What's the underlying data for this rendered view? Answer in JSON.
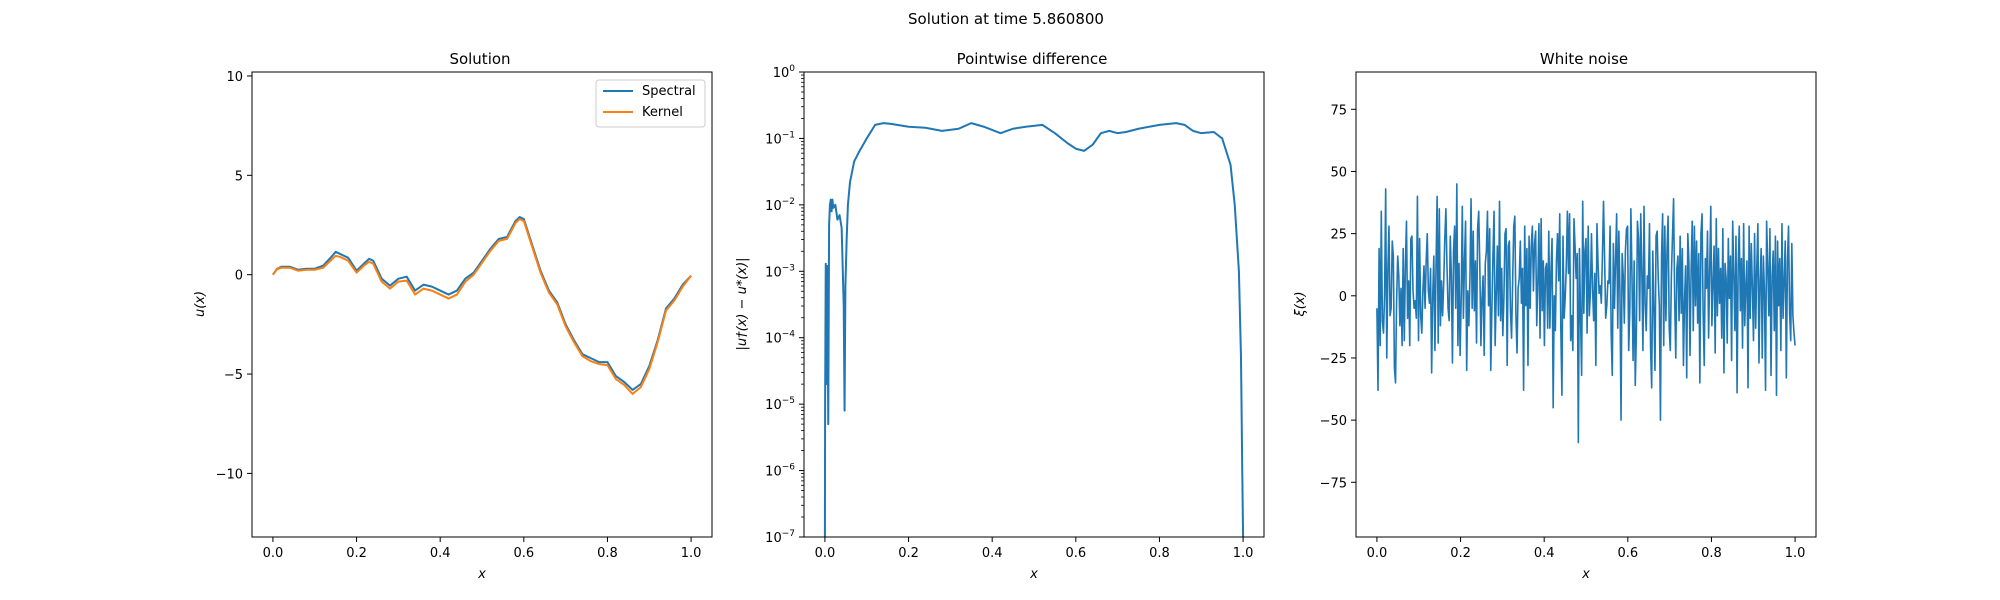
{
  "figure": {
    "suptitle": "Solution at time 5.860800"
  },
  "chart_data": [
    {
      "type": "line",
      "title": "Solution",
      "xlabel": "x",
      "ylabel": "u(x)",
      "xlim": [
        -0.05,
        1.05
      ],
      "ylim": [
        -13.2,
        10.2
      ],
      "xticks": [
        0.0,
        0.2,
        0.4,
        0.6,
        0.8,
        1.0
      ],
      "xtick_labels": [
        "0.0",
        "0.2",
        "0.4",
        "0.6",
        "0.8",
        "1.0"
      ],
      "yticks": [
        -10,
        -5,
        0,
        5,
        10
      ],
      "ytick_labels": [
        "−10",
        "−5",
        "0",
        "5",
        "10"
      ],
      "legend": {
        "placement": "upper-right",
        "entries": [
          "Spectral",
          "Kernel"
        ]
      },
      "series": [
        {
          "name": "Spectral",
          "color": "#1f77b4",
          "x": [
            0.0,
            0.01,
            0.02,
            0.04,
            0.06,
            0.08,
            0.1,
            0.12,
            0.14,
            0.15,
            0.16,
            0.18,
            0.2,
            0.22,
            0.23,
            0.24,
            0.26,
            0.28,
            0.3,
            0.32,
            0.34,
            0.36,
            0.38,
            0.4,
            0.42,
            0.44,
            0.46,
            0.48,
            0.5,
            0.52,
            0.54,
            0.56,
            0.58,
            0.59,
            0.6,
            0.62,
            0.64,
            0.66,
            0.68,
            0.7,
            0.72,
            0.74,
            0.76,
            0.78,
            0.8,
            0.82,
            0.84,
            0.86,
            0.88,
            0.9,
            0.92,
            0.94,
            0.96,
            0.98,
            1.0
          ],
          "y": [
            0.0,
            0.3,
            0.4,
            0.4,
            0.25,
            0.3,
            0.3,
            0.45,
            0.9,
            1.15,
            1.05,
            0.85,
            0.2,
            0.6,
            0.8,
            0.7,
            -0.2,
            -0.55,
            -0.2,
            -0.1,
            -0.8,
            -0.5,
            -0.6,
            -0.8,
            -1.0,
            -0.8,
            -0.2,
            0.1,
            0.7,
            1.3,
            1.8,
            1.9,
            2.7,
            2.9,
            2.8,
            1.5,
            0.2,
            -0.8,
            -1.4,
            -2.5,
            -3.3,
            -4.0,
            -4.2,
            -4.4,
            -4.4,
            -5.1,
            -5.4,
            -5.8,
            -5.5,
            -4.6,
            -3.3,
            -1.7,
            -1.2,
            -0.5,
            -0.05
          ]
        },
        {
          "name": "Kernel",
          "color": "#ff7f0e",
          "x": [
            0.0,
            0.01,
            0.02,
            0.04,
            0.06,
            0.08,
            0.1,
            0.12,
            0.14,
            0.15,
            0.16,
            0.18,
            0.2,
            0.22,
            0.23,
            0.24,
            0.26,
            0.28,
            0.3,
            0.32,
            0.34,
            0.36,
            0.38,
            0.4,
            0.42,
            0.44,
            0.46,
            0.48,
            0.5,
            0.52,
            0.54,
            0.56,
            0.58,
            0.59,
            0.6,
            0.62,
            0.64,
            0.66,
            0.68,
            0.7,
            0.72,
            0.74,
            0.76,
            0.78,
            0.8,
            0.82,
            0.84,
            0.86,
            0.88,
            0.9,
            0.92,
            0.94,
            0.96,
            0.98,
            1.0
          ],
          "y": [
            0.0,
            0.28,
            0.35,
            0.35,
            0.2,
            0.25,
            0.25,
            0.35,
            0.75,
            0.95,
            0.9,
            0.7,
            0.1,
            0.5,
            0.65,
            0.55,
            -0.35,
            -0.7,
            -0.35,
            -0.3,
            -1.0,
            -0.7,
            -0.8,
            -1.0,
            -1.2,
            -1.0,
            -0.35,
            0.0,
            0.6,
            1.2,
            1.7,
            1.8,
            2.6,
            2.8,
            2.7,
            1.4,
            0.1,
            -0.9,
            -1.5,
            -2.6,
            -3.4,
            -4.1,
            -4.35,
            -4.5,
            -4.55,
            -5.25,
            -5.55,
            -6.0,
            -5.65,
            -4.75,
            -3.4,
            -1.8,
            -1.3,
            -0.6,
            -0.05
          ]
        }
      ]
    },
    {
      "type": "line",
      "title": "Pointwise difference",
      "xlabel": "x",
      "ylabel": "|u†(x) − u*(x)|",
      "yscale": "log",
      "xlim": [
        -0.05,
        1.05
      ],
      "ylim": [
        1e-07,
        1
      ],
      "xticks": [
        0.0,
        0.2,
        0.4,
        0.6,
        0.8,
        1.0
      ],
      "xtick_labels": [
        "0.0",
        "0.2",
        "0.4",
        "0.6",
        "0.8",
        "1.0"
      ],
      "yticks": [
        1e-07,
        1e-06,
        1e-05,
        0.0001,
        0.001,
        0.01,
        0.1,
        1
      ],
      "ytick_exponents": [
        "−7",
        "−6",
        "−5",
        "−4",
        "−3",
        "−2",
        "−1",
        "0"
      ],
      "ytick_base": "10",
      "series": [
        {
          "color": "#1f77b4",
          "x": [
            0.0,
            0.0005,
            0.002,
            0.004,
            0.006,
            0.008,
            0.01,
            0.012,
            0.014,
            0.016,
            0.018,
            0.02,
            0.025,
            0.03,
            0.035,
            0.04,
            0.045,
            0.047,
            0.049,
            0.052,
            0.055,
            0.06,
            0.07,
            0.08,
            0.1,
            0.12,
            0.14,
            0.16,
            0.2,
            0.24,
            0.28,
            0.32,
            0.35,
            0.38,
            0.42,
            0.45,
            0.48,
            0.52,
            0.55,
            0.58,
            0.6,
            0.62,
            0.64,
            0.66,
            0.68,
            0.7,
            0.72,
            0.75,
            0.8,
            0.84,
            0.86,
            0.88,
            0.9,
            0.93,
            0.95,
            0.97,
            0.98,
            0.99,
            0.995,
            0.998,
            1.0
          ],
          "y": [
            1e-07,
            1e-05,
            0.0013,
            2e-05,
            0.0012,
            5e-06,
            0.005,
            0.01,
            0.012,
            0.008,
            0.012,
            0.009,
            0.01,
            0.006,
            0.007,
            0.0045,
            0.0003,
            8e-06,
            0.0006,
            0.003,
            0.01,
            0.022,
            0.045,
            0.06,
            0.1,
            0.16,
            0.17,
            0.165,
            0.15,
            0.145,
            0.13,
            0.14,
            0.17,
            0.15,
            0.12,
            0.14,
            0.15,
            0.16,
            0.12,
            0.085,
            0.07,
            0.065,
            0.08,
            0.12,
            0.13,
            0.12,
            0.125,
            0.14,
            0.16,
            0.17,
            0.16,
            0.13,
            0.12,
            0.125,
            0.1,
            0.04,
            0.01,
            0.001,
            5e-05,
            1e-06,
            1e-07
          ]
        }
      ]
    },
    {
      "type": "line",
      "title": "White noise",
      "xlabel": "x",
      "ylabel": "ξ(x)",
      "xlim": [
        -0.05,
        1.05
      ],
      "ylim": [
        -97,
        90
      ],
      "xticks": [
        0.0,
        0.2,
        0.4,
        0.6,
        0.8,
        1.0
      ],
      "xtick_labels": [
        "0.0",
        "0.2",
        "0.4",
        "0.6",
        "0.8",
        "1.0"
      ],
      "yticks": [
        -75,
        -50,
        -25,
        0,
        25,
        50,
        75
      ],
      "ytick_labels": [
        "−75",
        "−50",
        "−25",
        "0",
        "25",
        "50",
        "75"
      ],
      "series": [
        {
          "color": "#1f77b4",
          "x_start": 0.0,
          "x_end": 1.0,
          "y": [
            -5,
            -38,
            19,
            -20,
            34,
            -10,
            -15,
            0,
            43,
            -25,
            10,
            28,
            -8,
            -5,
            22,
            16,
            -29,
            -35,
            -2,
            16,
            8,
            -12,
            3,
            -20,
            19,
            -18,
            12,
            30,
            -9,
            6,
            -20,
            23,
            24,
            2,
            -5,
            -2,
            -9,
            40,
            -18,
            23,
            -8,
            -15,
            2,
            12,
            -5,
            14,
            25,
            2,
            -3,
            11,
            -31,
            0,
            16,
            -22,
            12,
            40,
            -19,
            35,
            -12,
            6,
            -8,
            5,
            23,
            35,
            12,
            -5,
            -10,
            24,
            8,
            -27,
            18,
            28,
            -5,
            45,
            -20,
            13,
            -24,
            -1,
            36,
            -9,
            14,
            30,
            -30,
            2,
            -12,
            8,
            39,
            -5,
            26,
            -6,
            14,
            -19,
            27,
            34,
            12,
            -20,
            -1,
            8,
            -24,
            13,
            18,
            34,
            -4,
            27,
            -30,
            -6,
            16,
            34,
            -20,
            0,
            20,
            -8,
            38,
            -10,
            11,
            -16,
            -1,
            25,
            27,
            -28,
            20,
            22,
            -6,
            -17,
            6,
            28,
            32,
            -8,
            -23,
            3,
            7,
            22,
            -3,
            11,
            -38,
            28,
            -4,
            19,
            -28,
            24,
            -5,
            20,
            28,
            2,
            21,
            26,
            -12,
            5,
            29,
            -17,
            31,
            -6,
            14,
            -20,
            11,
            13,
            -13,
            26,
            -13,
            10,
            23,
            -45,
            0,
            -14,
            14,
            25,
            6,
            33,
            -13,
            -40,
            24,
            -9,
            -1,
            12,
            34,
            9,
            33,
            -18,
            -8,
            -22,
            31,
            20,
            7,
            17,
            -59,
            19,
            -8,
            -32,
            38,
            -7,
            18,
            23,
            -15,
            28,
            -8,
            1,
            25,
            3,
            -10,
            9,
            -28,
            29,
            13,
            1,
            4,
            -3,
            16,
            38,
            15,
            -9,
            -4,
            6,
            5,
            28,
            -15,
            -32,
            21,
            -5,
            14,
            33,
            -13,
            26,
            2,
            -50,
            17,
            8,
            -11,
            18,
            27,
            28,
            -22,
            -6,
            35,
            8,
            -26,
            14,
            -36,
            -15,
            30,
            23,
            -10,
            33,
            10,
            -22,
            36,
            -3,
            -14,
            8,
            3,
            29,
            -21,
            -37,
            18,
            -5,
            -30,
            24,
            26,
            7,
            -4,
            -50,
            16,
            33,
            -20,
            28,
            -10,
            18,
            32,
            -13,
            -22,
            8,
            24,
            39,
            -1,
            -25,
            11,
            16,
            -10,
            24,
            -7,
            19,
            -28,
            -2,
            12,
            -33,
            25,
            14,
            -24,
            10,
            30,
            -14,
            28,
            -4,
            22,
            -11,
            17,
            -35,
            25,
            33,
            -7,
            -28,
            15,
            3,
            26,
            -17,
            10,
            36,
            -12,
            5,
            20,
            -23,
            31,
            -8,
            19,
            -3,
            11,
            -17,
            27,
            -31,
            13,
            7,
            -19,
            23,
            -1,
            16,
            -26,
            30,
            9,
            -14,
            24,
            -39,
            12,
            28,
            -6,
            15,
            -21,
            29,
            -12,
            4,
            14,
            -37,
            28,
            -9,
            21,
            3,
            -18,
            25,
            -13,
            11,
            29,
            -27,
            6,
            19,
            -25,
            16,
            2,
            -38,
            30,
            12,
            -8,
            27,
            -32,
            8,
            18,
            -14,
            24,
            -40,
            22,
            -4,
            15,
            -22,
            29,
            -9,
            6,
            22,
            -33,
            14,
            28,
            -7,
            -18,
            21,
            -8,
            -15,
            -20
          ]
        }
      ]
    }
  ]
}
